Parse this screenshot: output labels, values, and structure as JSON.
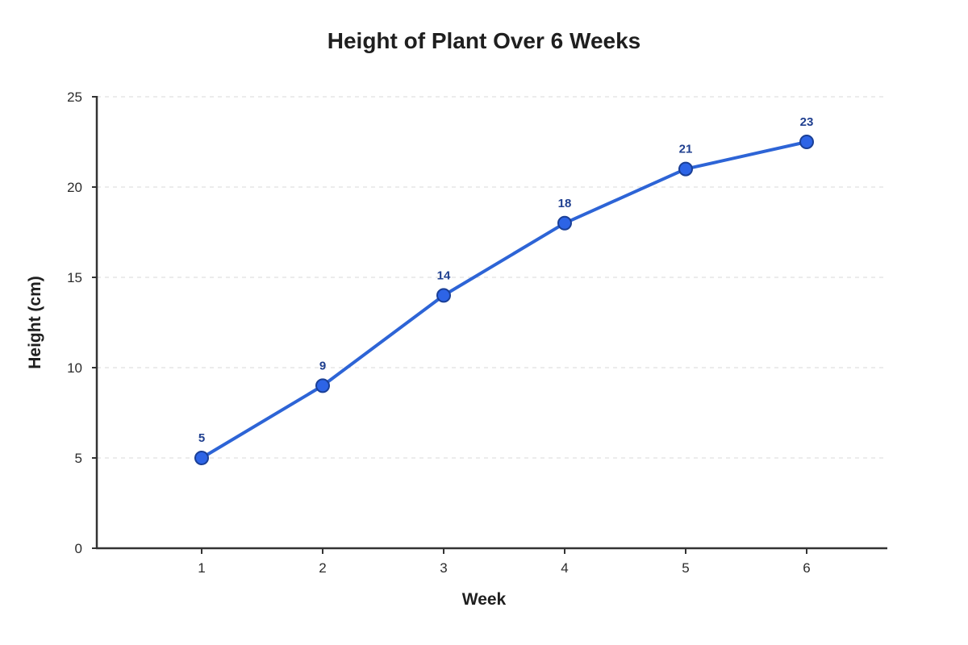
{
  "chart_data": {
    "type": "line",
    "title": "Height of Plant Over 6 Weeks",
    "xlabel": "Week",
    "ylabel": "Height (cm)",
    "x": [
      1,
      2,
      3,
      4,
      5,
      6
    ],
    "series": [
      {
        "values": [
          5,
          9,
          14,
          18,
          21,
          22.5
        ],
        "data_labels": [
          "5",
          "9",
          "14",
          "18",
          "21",
          "23"
        ]
      }
    ],
    "ylim": [
      0,
      25
    ],
    "yticks": [
      0,
      5,
      10,
      15,
      20,
      25
    ],
    "xticks": [
      "1",
      "2",
      "3",
      "4",
      "5",
      "6"
    ],
    "grid": true,
    "legend": "none"
  },
  "colors": {
    "line": "#2d64d6",
    "marker_fill": "#2d64e6",
    "marker_stroke": "#1a3f96",
    "data_label": "#1f3f8f"
  }
}
